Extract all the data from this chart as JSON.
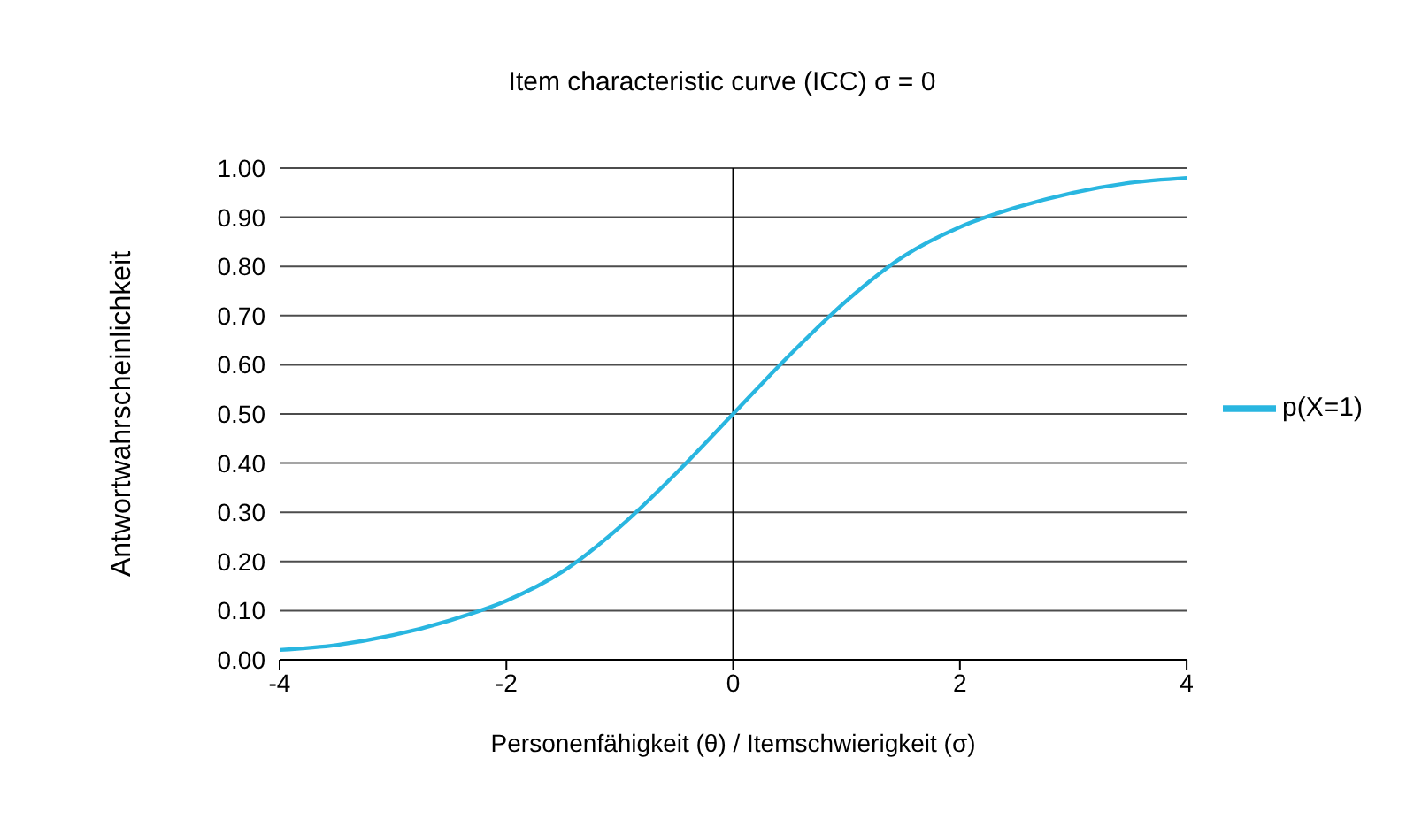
{
  "chart_data": {
    "type": "line",
    "title": "Item characteristic curve (ICC) σ = 0",
    "xlabel": "Personenfähigkeit (θ) / Itemschwierigkeit (σ)",
    "ylabel": "Antwortwahrscheinlichkeit",
    "x": [
      -4,
      -3.5,
      -3,
      -2.5,
      -2,
      -1.5,
      -1,
      -0.5,
      0,
      0.5,
      1,
      1.5,
      2,
      2.5,
      3,
      3.5,
      4
    ],
    "series": [
      {
        "name": "p(X=1)",
        "color": "#29b6e0",
        "values": [
          0.02,
          0.03,
          0.05,
          0.08,
          0.12,
          0.18,
          0.27,
          0.38,
          0.5,
          0.62,
          0.73,
          0.82,
          0.88,
          0.92,
          0.95,
          0.97,
          0.98
        ]
      }
    ],
    "xlim": [
      -4,
      4
    ],
    "xticks": [
      -4,
      -2,
      0,
      2,
      4
    ],
    "ylim": [
      0,
      1
    ],
    "yticks": [
      {
        "value": 0,
        "label": "0.00"
      },
      {
        "value": 0.1,
        "label": "0.10"
      },
      {
        "value": 0.2,
        "label": "0.20"
      },
      {
        "value": 0.3,
        "label": "0.30"
      },
      {
        "value": 0.4,
        "label": "0.40"
      },
      {
        "value": 0.5,
        "label": "0.50"
      },
      {
        "value": 0.6,
        "label": "0.60"
      },
      {
        "value": 0.7,
        "label": "0.70"
      },
      {
        "value": 0.8,
        "label": "0.80"
      },
      {
        "value": 0.9,
        "label": "0.90"
      },
      {
        "value": 1,
        "label": "1.00"
      }
    ],
    "ref_lines": [
      {
        "axis": "x",
        "value": 0,
        "color": "#000000"
      }
    ],
    "grid": "y",
    "legend": "right",
    "marker": "none",
    "line_style": "solid"
  }
}
